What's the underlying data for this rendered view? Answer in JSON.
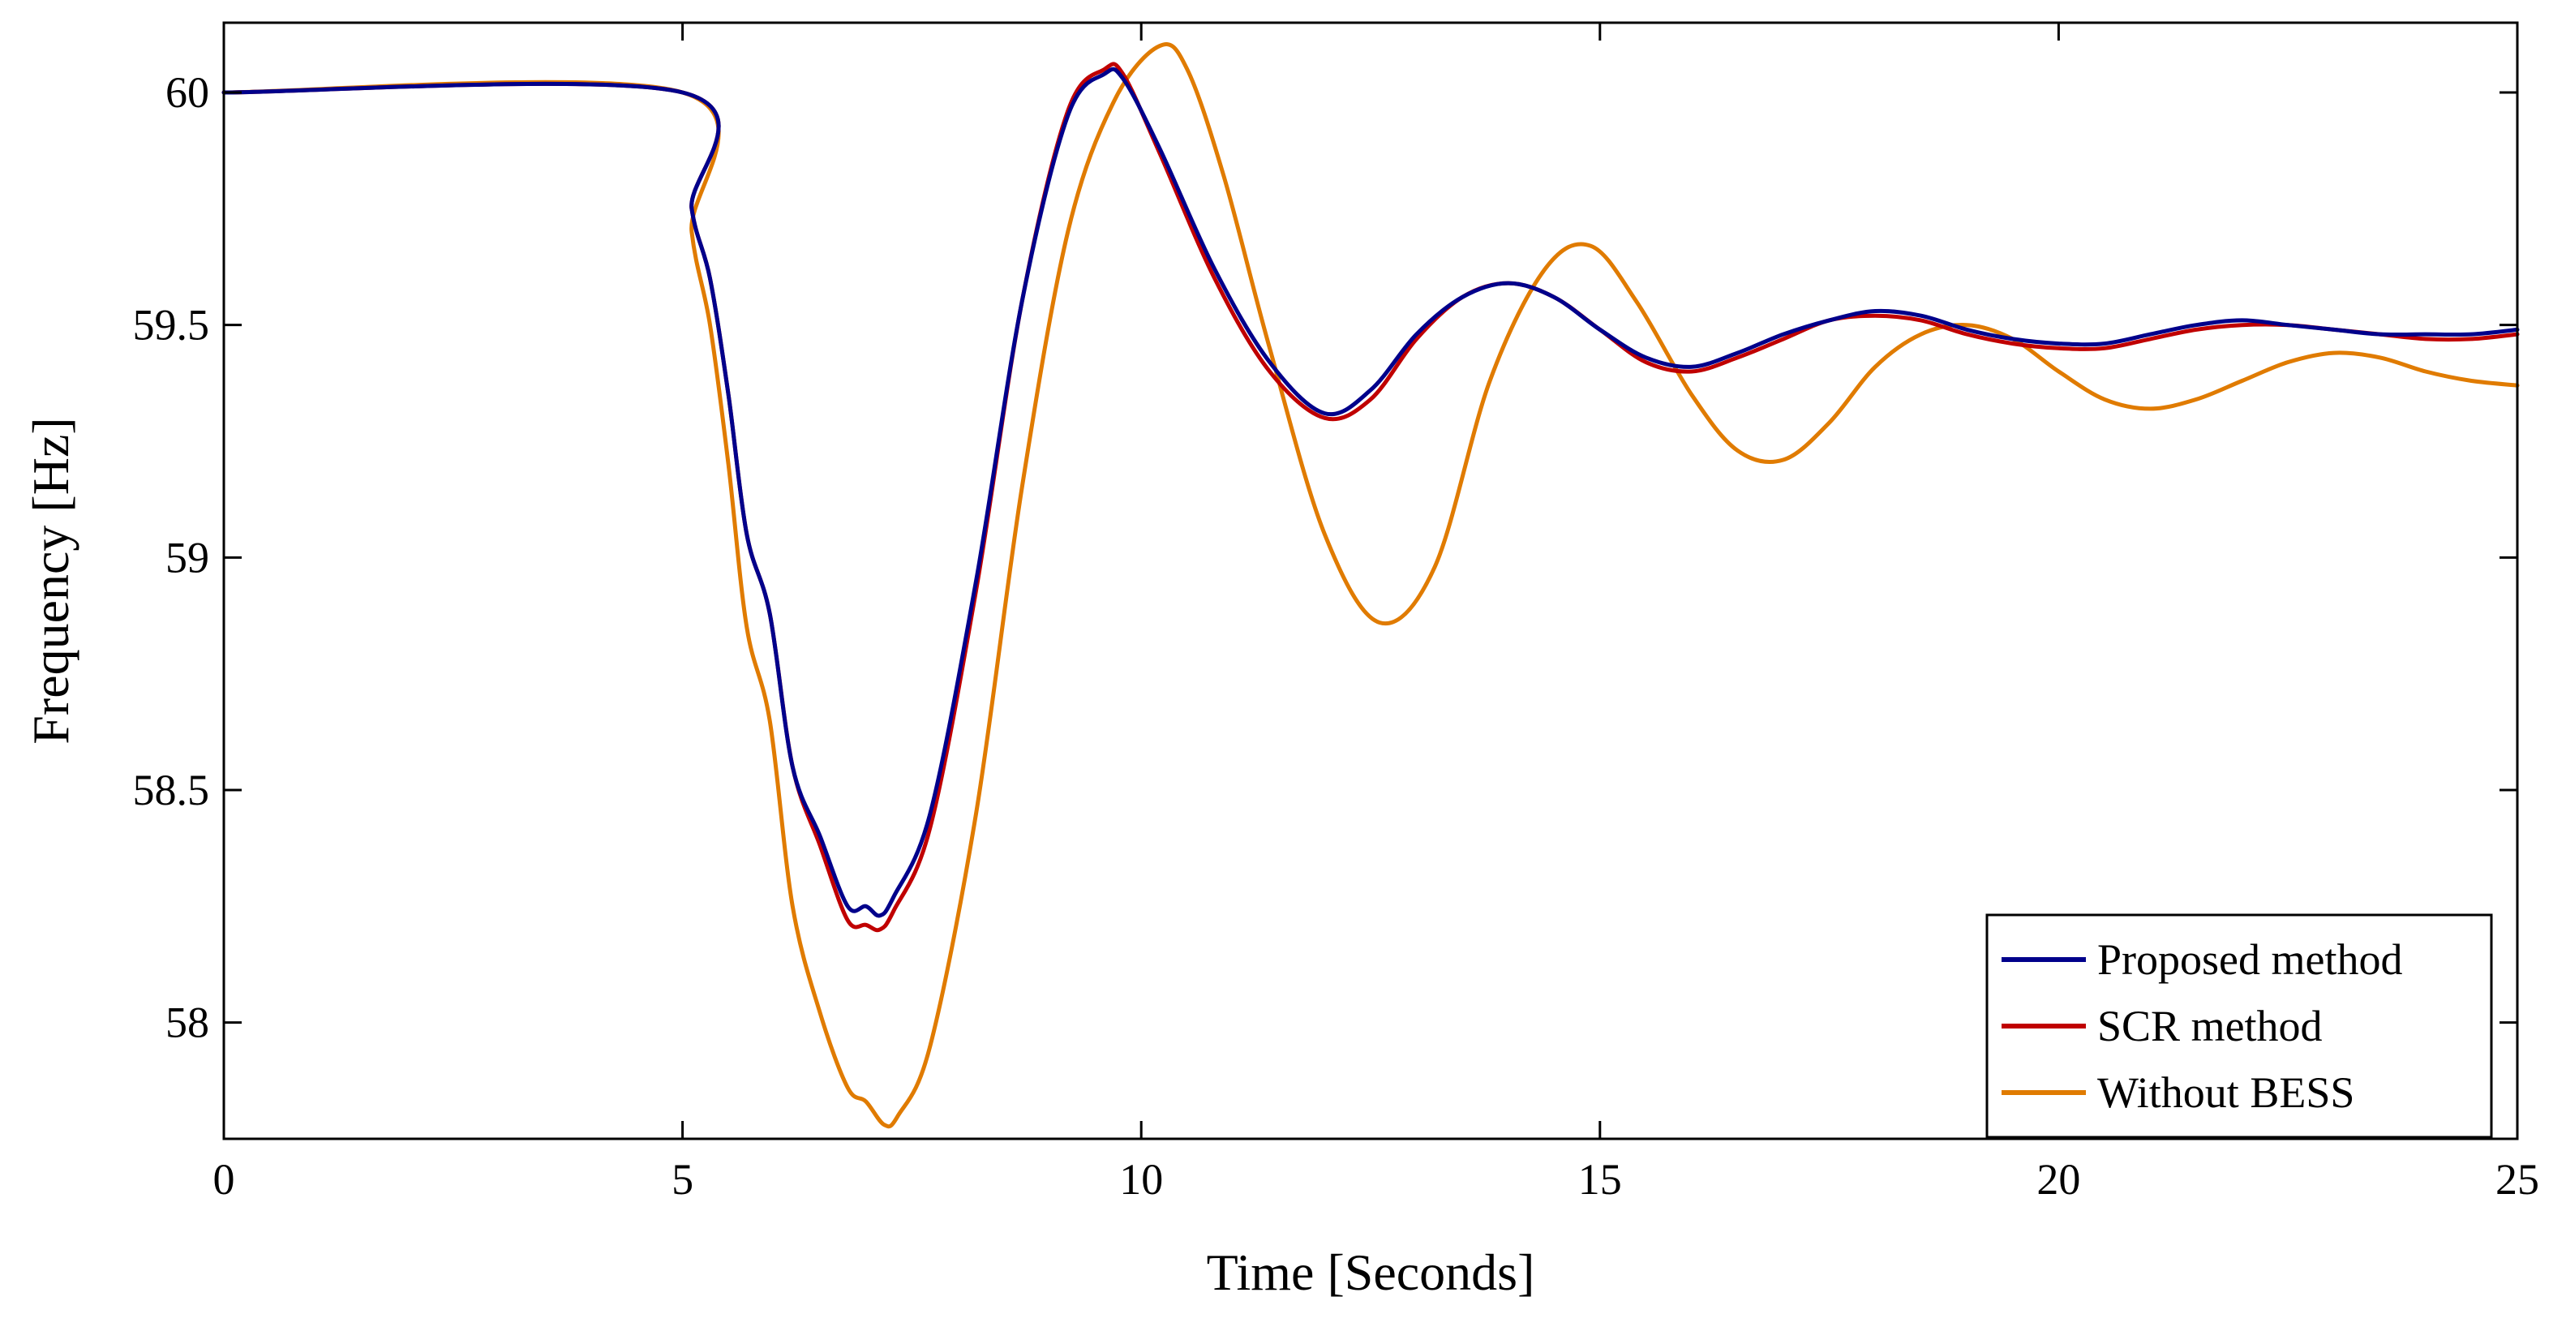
{
  "chart_data": {
    "type": "line",
    "title": "",
    "xlabel": "Time [Seconds]",
    "ylabel": "Frequency [Hz]",
    "xlim": [
      0,
      25
    ],
    "ylim": [
      57.75,
      60.15
    ],
    "xticks": [
      0,
      5,
      10,
      15,
      20,
      25
    ],
    "yticks": [
      58,
      58.5,
      59,
      59.5,
      60
    ],
    "grid": false,
    "legend_position": "bottom-right",
    "series": [
      {
        "name": "Proposed method",
        "color": "#00008b",
        "x": [
          0,
          5,
          5.1,
          5.3,
          5.5,
          5.7,
          5.95,
          6.2,
          6.5,
          6.8,
          7.0,
          7.15,
          7.3,
          7.7,
          8.2,
          8.7,
          9.2,
          9.6,
          9.8,
          10.2,
          10.8,
          11.4,
          12.0,
          12.5,
          13.0,
          13.5,
          14.0,
          14.5,
          15.0,
          15.5,
          16.0,
          16.5,
          17.0,
          17.5,
          18.0,
          18.5,
          19.0,
          19.5,
          20.0,
          20.5,
          21.0,
          21.5,
          22.0,
          22.5,
          23.0,
          23.5,
          24.0,
          24.5,
          25.0
        ],
        "y": [
          60,
          60,
          59.75,
          59.6,
          59.35,
          59.05,
          58.88,
          58.55,
          58.4,
          58.25,
          58.25,
          58.23,
          58.27,
          58.45,
          58.95,
          59.55,
          59.95,
          60.04,
          60.03,
          59.88,
          59.62,
          59.42,
          59.31,
          59.36,
          59.48,
          59.56,
          59.59,
          59.56,
          59.49,
          59.43,
          59.41,
          59.44,
          59.48,
          59.51,
          59.53,
          59.52,
          59.49,
          59.47,
          59.46,
          59.46,
          59.48,
          59.5,
          59.51,
          59.5,
          59.49,
          59.48,
          59.48,
          59.48,
          59.49
        ]
      },
      {
        "name": "SCR method",
        "color": "#c00000",
        "x": [
          0,
          5,
          5.1,
          5.3,
          5.5,
          5.7,
          5.95,
          6.2,
          6.5,
          6.8,
          7.0,
          7.15,
          7.3,
          7.7,
          8.2,
          8.7,
          9.2,
          9.6,
          9.8,
          10.2,
          10.8,
          11.4,
          12.0,
          12.5,
          13.0,
          13.5,
          14.0,
          14.5,
          15.0,
          15.5,
          16.0,
          16.5,
          17.0,
          17.5,
          18.0,
          18.5,
          19.0,
          19.5,
          20.0,
          20.5,
          21.0,
          21.5,
          22.0,
          22.5,
          23.0,
          23.5,
          24.0,
          24.5,
          25.0
        ],
        "y": [
          60,
          60,
          59.75,
          59.6,
          59.35,
          59.05,
          58.88,
          58.55,
          58.38,
          58.22,
          58.21,
          58.2,
          58.24,
          58.42,
          58.93,
          59.55,
          59.96,
          60.05,
          60.04,
          59.87,
          59.6,
          59.4,
          59.3,
          59.34,
          59.47,
          59.56,
          59.59,
          59.56,
          59.49,
          59.42,
          59.4,
          59.43,
          59.47,
          59.51,
          59.52,
          59.51,
          59.48,
          59.46,
          59.45,
          59.45,
          59.47,
          59.49,
          59.5,
          59.5,
          59.49,
          59.48,
          59.47,
          59.47,
          59.48
        ]
      },
      {
        "name": "Without BESS",
        "color": "#e07b00",
        "x": [
          0,
          5,
          5.1,
          5.3,
          5.5,
          5.7,
          5.95,
          6.2,
          6.5,
          6.8,
          7.0,
          7.2,
          7.35,
          7.7,
          8.2,
          8.7,
          9.2,
          9.7,
          10.2,
          10.5,
          10.9,
          11.4,
          12.0,
          12.6,
          13.2,
          13.8,
          14.4,
          14.9,
          15.4,
          16.0,
          16.5,
          17.0,
          17.5,
          18.0,
          18.5,
          19.0,
          19.5,
          20.0,
          20.5,
          21.0,
          21.5,
          22.0,
          22.5,
          23.0,
          23.5,
          24.0,
          24.5,
          25.0
        ],
        "y": [
          60,
          60,
          59.7,
          59.5,
          59.2,
          58.85,
          58.65,
          58.25,
          58.02,
          57.86,
          57.83,
          57.78,
          57.8,
          57.95,
          58.45,
          59.15,
          59.7,
          59.98,
          60.1,
          60.05,
          59.82,
          59.45,
          59.05,
          58.86,
          58.98,
          59.38,
          59.62,
          59.67,
          59.55,
          59.35,
          59.23,
          59.21,
          59.29,
          59.41,
          59.48,
          59.5,
          59.47,
          59.4,
          59.34,
          59.32,
          59.34,
          59.38,
          59.42,
          59.44,
          59.43,
          59.4,
          59.38,
          59.37
        ]
      }
    ]
  }
}
